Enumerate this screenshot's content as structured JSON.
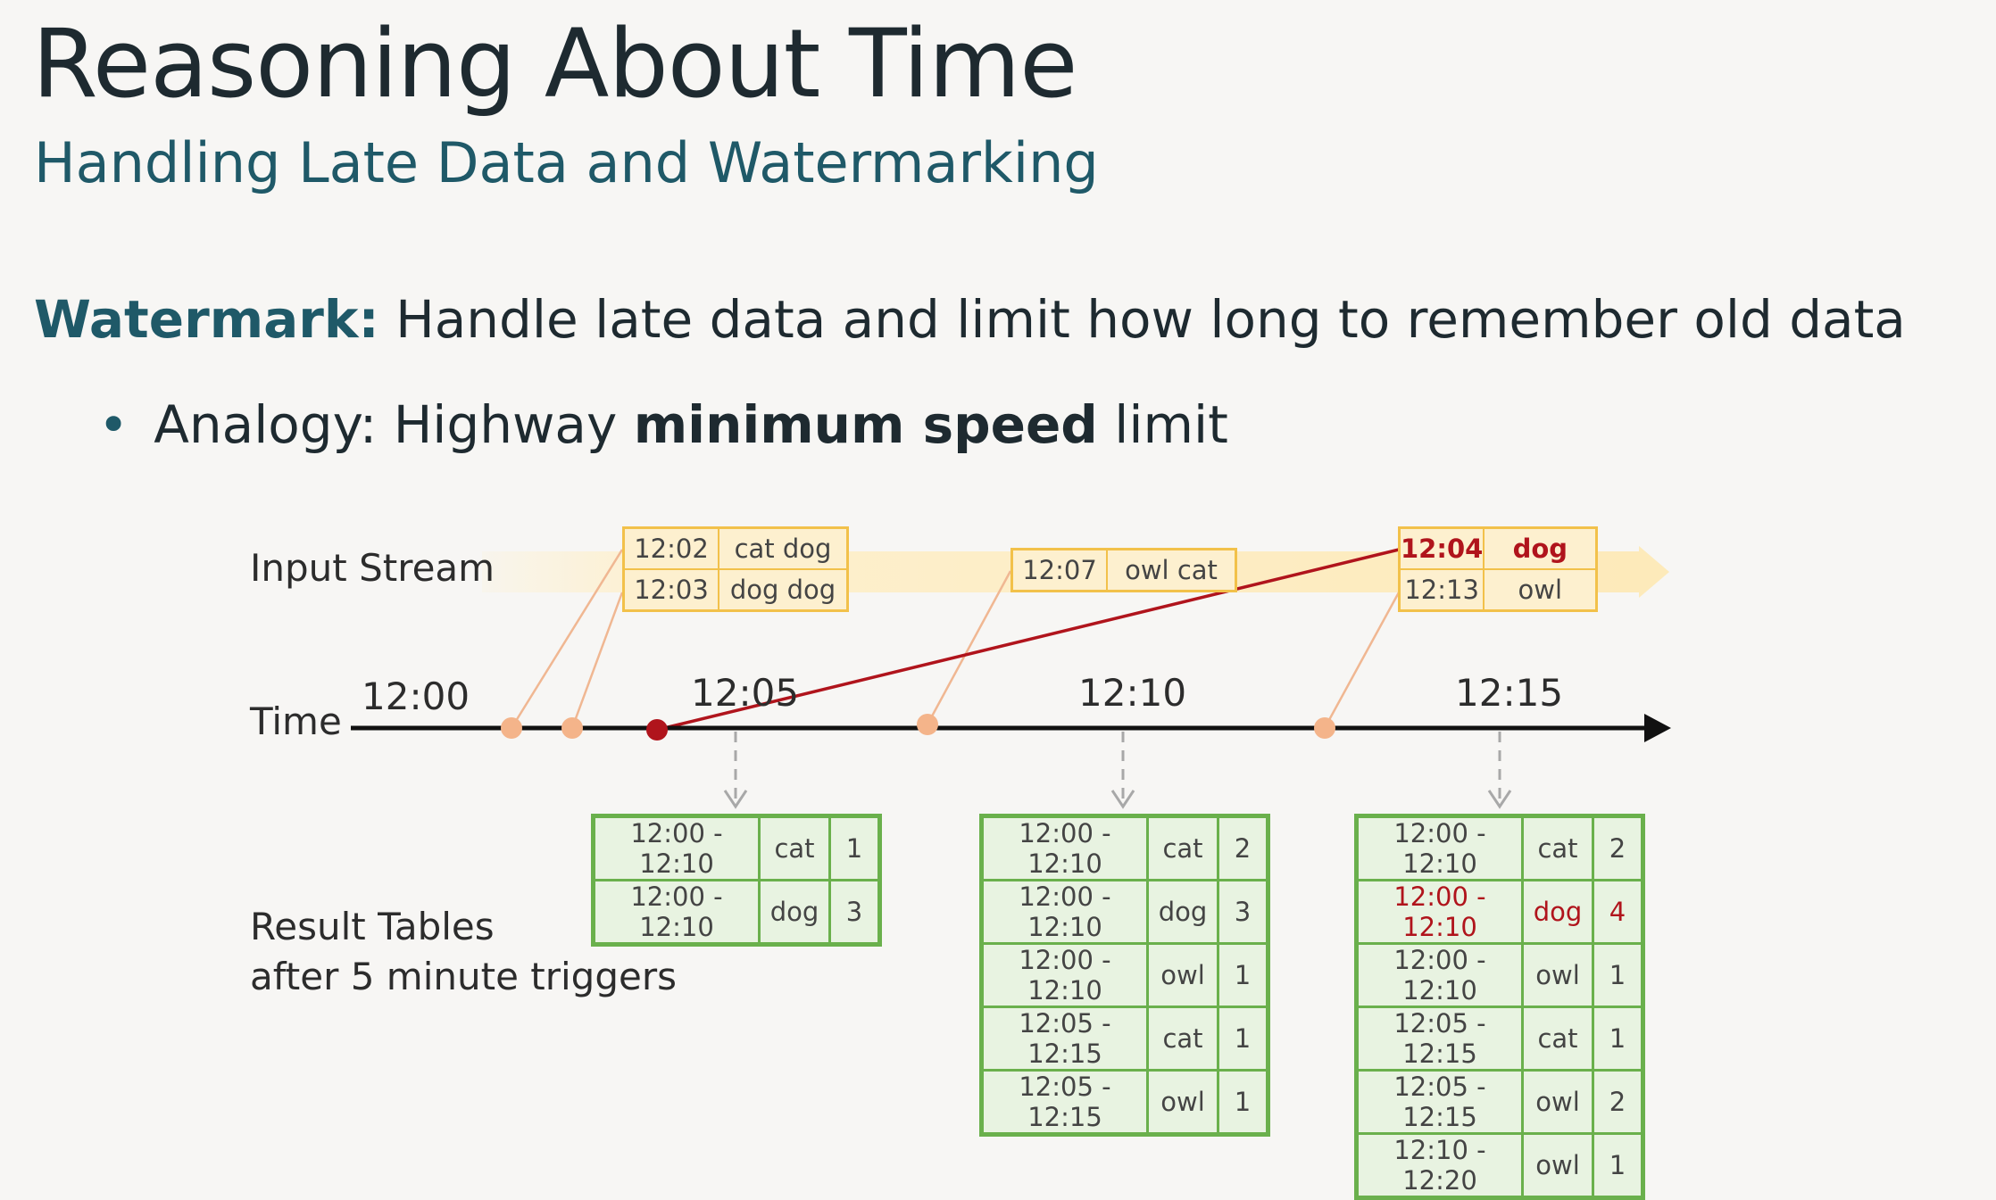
{
  "title": "Reasoning About Time",
  "subtitle": "Handling Late Data and Watermarking",
  "watermark": {
    "term": "Watermark:",
    "text": " Handle late data and limit how long to remember old data"
  },
  "bullet": {
    "prefix": "Analogy: Highway ",
    "bold": "minimum speed",
    "suffix": " limit"
  },
  "diagram": {
    "input_stream_label": "Input Stream",
    "time_label": "Time",
    "result_label_line1": "Result Tables",
    "result_label_line2": "after 5 minute triggers",
    "ticks": [
      "12:00",
      "12:05",
      "12:10",
      "12:15"
    ],
    "colors": {
      "event_border": "#f2c14a",
      "event_fill": "#fdf0cf",
      "result_border": "#6ab04c",
      "result_fill": "#e8f3e1",
      "late": "#b0141c",
      "arrival_dot": "#f4b48a"
    },
    "event_batches": [
      {
        "rows": [
          {
            "time": "12:02",
            "words": "cat dog"
          },
          {
            "time": "12:03",
            "words": "dog dog"
          }
        ]
      },
      {
        "rows": [
          {
            "time": "12:07",
            "words": "owl cat"
          }
        ]
      },
      {
        "rows": [
          {
            "time": "12:04",
            "words": "dog",
            "late": true
          },
          {
            "time": "12:13",
            "words": "owl"
          }
        ]
      }
    ],
    "result_tables": [
      {
        "trigger": "12:05",
        "rows": [
          {
            "window": "12:00 - 12:10",
            "word": "cat",
            "count": "1"
          },
          {
            "window": "12:00 - 12:10",
            "word": "dog",
            "count": "3"
          }
        ]
      },
      {
        "trigger": "12:10",
        "rows": [
          {
            "window": "12:00 - 12:10",
            "word": "cat",
            "count": "2"
          },
          {
            "window": "12:00 - 12:10",
            "word": "dog",
            "count": "3"
          },
          {
            "window": "12:00 - 12:10",
            "word": "owl",
            "count": "1"
          },
          {
            "window": "12:05 - 12:15",
            "word": "cat",
            "count": "1"
          },
          {
            "window": "12:05 - 12:15",
            "word": "owl",
            "count": "1"
          }
        ]
      },
      {
        "trigger": "12:15",
        "rows": [
          {
            "window": "12:00 - 12:10",
            "word": "cat",
            "count": "2"
          },
          {
            "window": "12:00 - 12:10",
            "word": "dog",
            "count": "4",
            "late": true
          },
          {
            "window": "12:00 - 12:10",
            "word": "owl",
            "count": "1"
          },
          {
            "window": "12:05 - 12:15",
            "word": "cat",
            "count": "1"
          },
          {
            "window": "12:05 - 12:15",
            "word": "owl",
            "count": "2"
          },
          {
            "window": "12:10 - 12:20",
            "word": "owl",
            "count": "1"
          }
        ]
      }
    ]
  }
}
